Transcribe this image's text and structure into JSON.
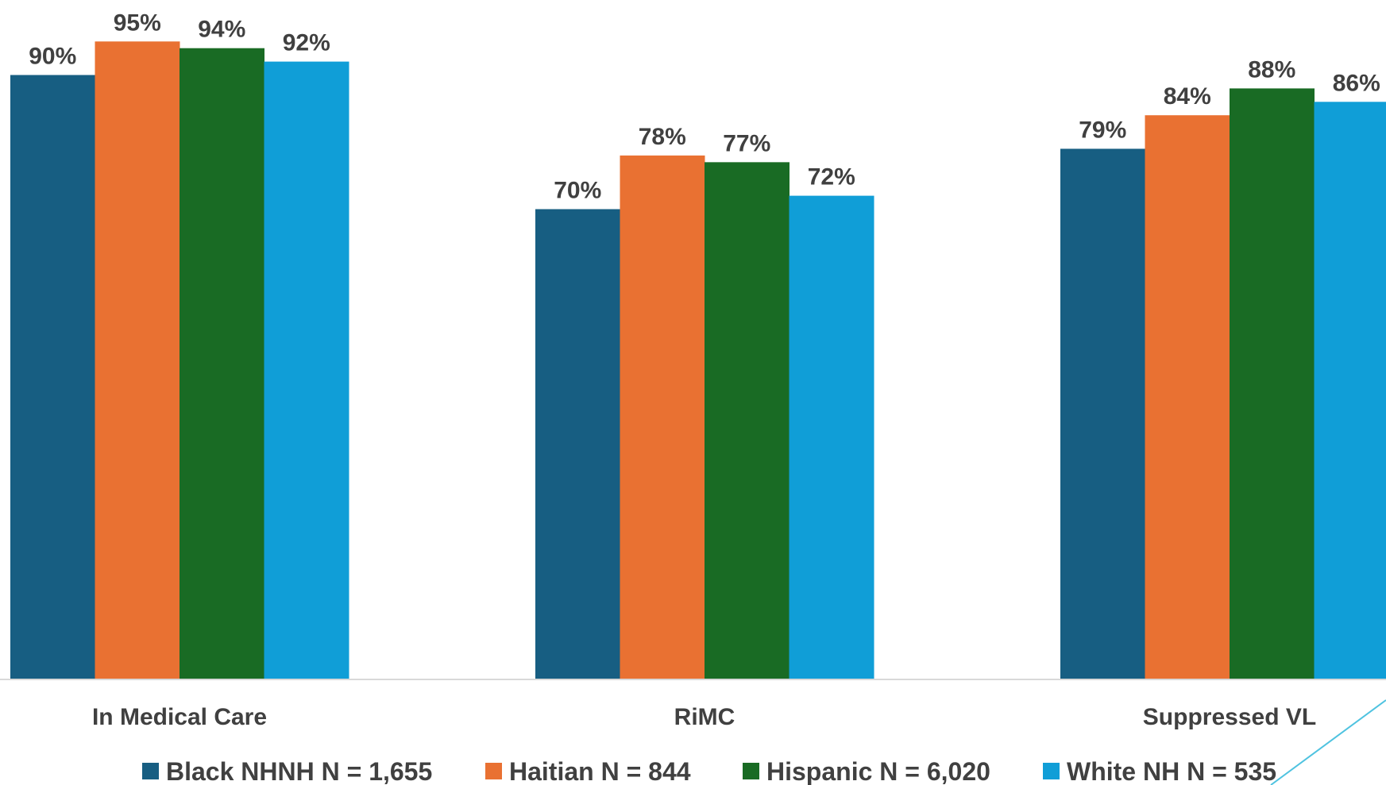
{
  "chart_data": {
    "type": "bar",
    "title": "",
    "xlabel": "",
    "ylabel": "",
    "ylim": [
      0,
      100
    ],
    "grid": false,
    "legend": "bottom",
    "categories": [
      "In Medical Care",
      "RiMC",
      "Suppressed VL"
    ],
    "series": [
      {
        "name": "Black NHNH N = 1,655",
        "color": "#175E82",
        "values": [
          90,
          70,
          79
        ]
      },
      {
        "name": "Haitian N = 844",
        "color": "#E97132",
        "values": [
          95,
          78,
          84
        ]
      },
      {
        "name": "Hispanic N = 6,020",
        "color": "#196B24",
        "values": [
          94,
          77,
          88
        ]
      },
      {
        "name": "White NH N = 535",
        "color": "#109ED7",
        "values": [
          92,
          72,
          86
        ]
      }
    ],
    "value_labels": [
      [
        "90%",
        "70%",
        "79%"
      ],
      [
        "95%",
        "78%",
        "84%"
      ],
      [
        "94%",
        "77%",
        "88%"
      ],
      [
        "92%",
        "72%",
        "86%"
      ]
    ]
  },
  "decoration": {
    "accent_line_color": "#4FC3E0"
  }
}
